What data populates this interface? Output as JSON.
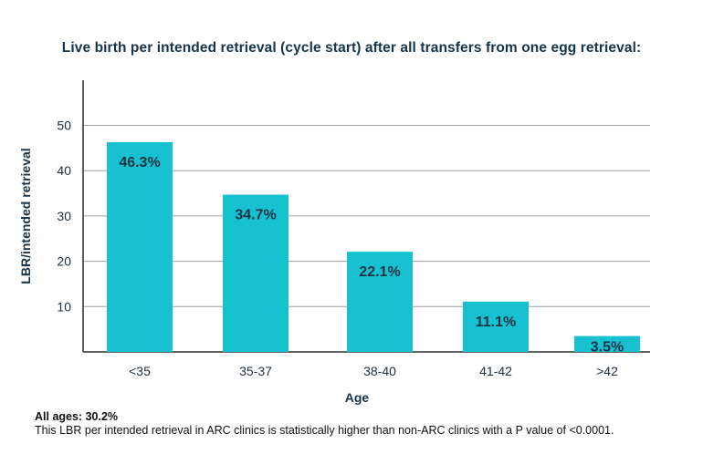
{
  "chart_data": {
    "type": "bar",
    "title": "Live birth per intended retrieval (cycle start) after all transfers from one egg retrieval:",
    "xlabel": "Age",
    "ylabel": "LBR/intended retrieval",
    "categories": [
      "<35",
      "35-37",
      "38-40",
      "41-42",
      ">42"
    ],
    "values": [
      46.3,
      34.7,
      22.1,
      11.1,
      3.5
    ],
    "data_labels": [
      "46.3%",
      "34.7%",
      "22.1%",
      "11.1%",
      "3.5%"
    ],
    "yticks": [
      10,
      20,
      30,
      40,
      50
    ],
    "ylim": [
      0,
      60
    ],
    "grid": true,
    "legend": "none",
    "bar_color": "#17c1cf",
    "grid_color": "#9aa0a6",
    "label_color": "#1b3347"
  },
  "footnote": {
    "line1": "All ages: 30.2%",
    "line2": "This LBR per intended retrieval in ARC clinics is statistically higher than non-ARC clinics with a P value of <0.0001."
  }
}
